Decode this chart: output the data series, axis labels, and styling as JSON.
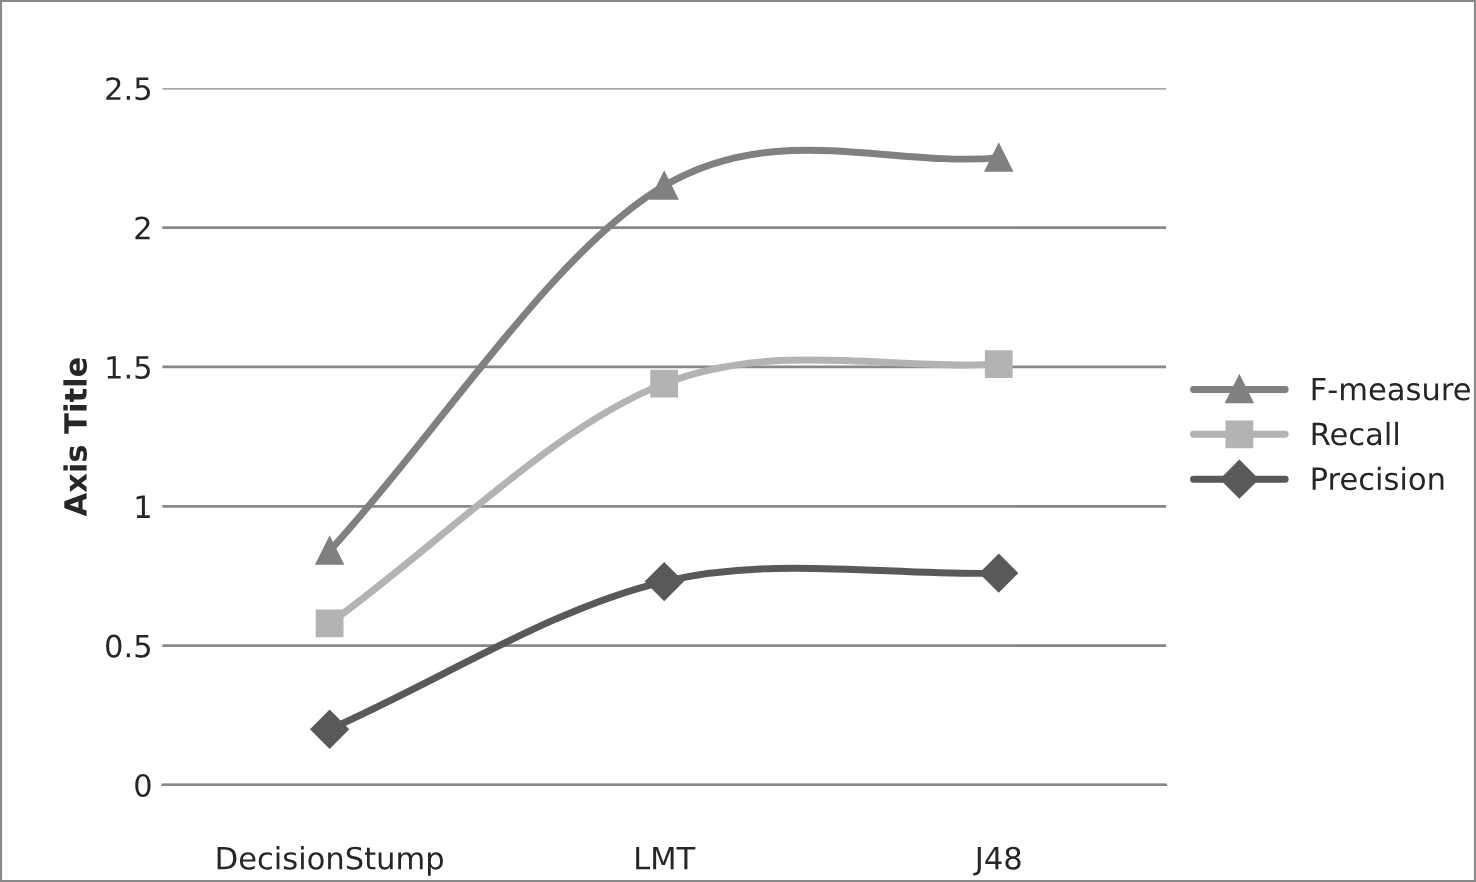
{
  "chart_data": {
    "type": "line",
    "ylabel": "Axis Title",
    "categories": [
      "DecisionStump",
      "LMT",
      "J48"
    ],
    "series": [
      {
        "name": "F-measure",
        "color": "#808080",
        "marker": "triangle",
        "values": [
          0.84,
          2.15,
          2.25
        ]
      },
      {
        "name": "Recall",
        "color": "#b3b3b3",
        "marker": "square",
        "values": [
          0.58,
          1.44,
          1.51
        ]
      },
      {
        "name": "Precision",
        "color": "#595959",
        "marker": "diamond",
        "values": [
          0.2,
          0.73,
          0.76
        ]
      }
    ],
    "ylim": [
      0,
      2.5
    ],
    "yticks": [
      0,
      0.5,
      1,
      1.5,
      2,
      2.5
    ],
    "grid": "y",
    "legend": "right",
    "line_style": "solid"
  }
}
